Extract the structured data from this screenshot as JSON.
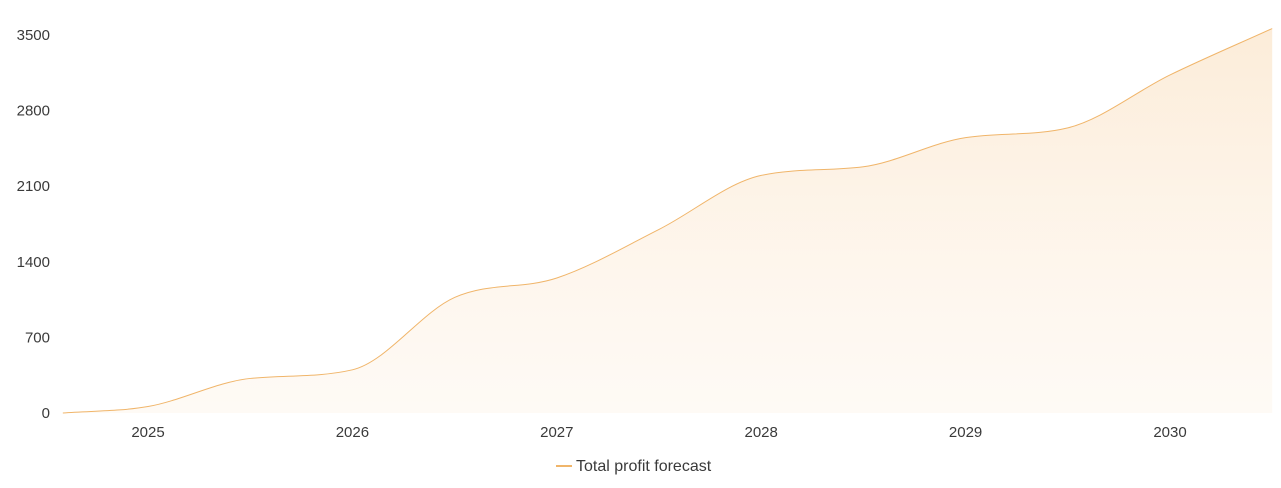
{
  "chart_data": {
    "type": "area",
    "title": "",
    "xlabel": "",
    "ylabel": "",
    "x_ticks": [
      "2025",
      "2026",
      "2027",
      "2028",
      "2029",
      "2030"
    ],
    "y_ticks": [
      "0",
      "700",
      "1400",
      "2100",
      "2800",
      "3500"
    ],
    "ylim": [
      0,
      3500
    ],
    "grid": false,
    "legend": "bottom-center",
    "series": [
      {
        "name": "Total profit forecast",
        "color": "#f0b56a",
        "x": [
          "2024-08",
          "2025",
          "2025-07",
          "2026",
          "2026-07",
          "2027",
          "2027-07",
          "2028",
          "2028-07",
          "2029",
          "2029-07",
          "2030",
          "2030-07"
        ],
        "values": [
          0,
          60,
          320,
          400,
          1070,
          1250,
          1700,
          2200,
          2280,
          2550,
          2640,
          3130,
          3560
        ]
      }
    ]
  }
}
